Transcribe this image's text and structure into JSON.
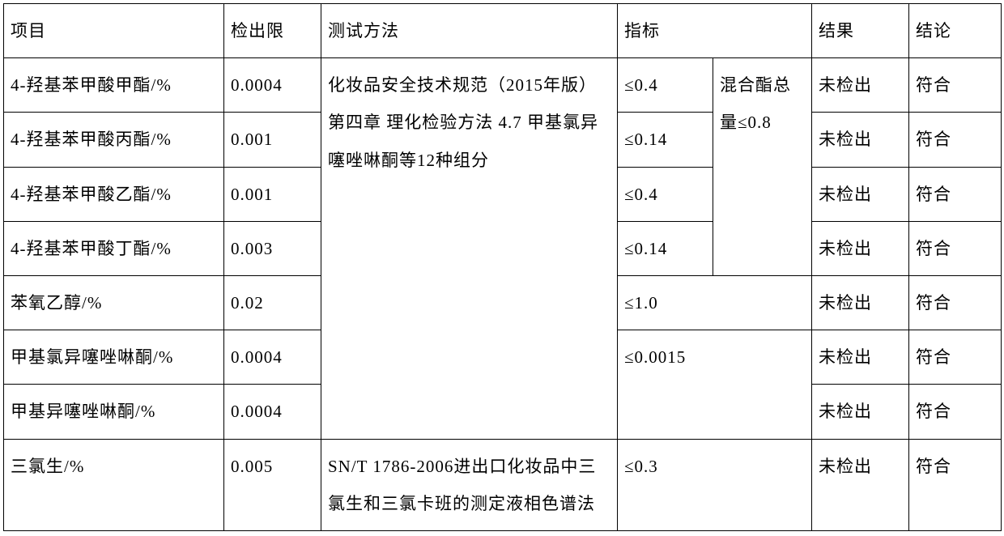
{
  "header": {
    "project": "项目",
    "limit": "检出限",
    "method": "测试方法",
    "spec": "指标",
    "result": "结果",
    "conclusion": "结论"
  },
  "method1": "化妆品安全技术规范（2015年版） 第四章 理化检验方法 4.7 甲基氯异噻唑啉酮等12种组分",
  "method2": "SN/T 1786-2006进出口化妆品中三氯生和三氯卡班的测定液相色谱法",
  "merged_spec_note": "混合酯总　量≤0.8",
  "rows": [
    {
      "project": "4-羟基苯甲酸甲酯/%",
      "limit": "0.0004",
      "spec": "≤0.4",
      "result": "未检出",
      "conclusion": "符合"
    },
    {
      "project": "4-羟基苯甲酸丙酯/%",
      "limit": "0.001",
      "spec": "≤0.14",
      "result": "未检出",
      "conclusion": "符合"
    },
    {
      "project": "4-羟基苯甲酸乙酯/%",
      "limit": "0.001",
      "spec": "≤0.4",
      "result": "未检出",
      "conclusion": "符合"
    },
    {
      "project": "4-羟基苯甲酸丁酯/%",
      "limit": "0.003",
      "spec": "≤0.14",
      "result": "未检出",
      "conclusion": "符合"
    },
    {
      "project": "苯氧乙醇/%",
      "limit": "0.02",
      "spec": "≤1.0",
      "result": "未检出",
      "conclusion": "符合"
    },
    {
      "project": "甲基氯异噻唑啉酮/%",
      "limit": "0.0004",
      "spec": "≤0.0015",
      "result": "未检出",
      "conclusion": "符合"
    },
    {
      "project": "甲基异噻唑啉酮/%",
      "limit": "0.0004",
      "spec": "",
      "result": "未检出",
      "conclusion": "符合"
    },
    {
      "project": "三氯生/%",
      "limit": "0.005",
      "spec": "≤0.3",
      "result": "未检出",
      "conclusion": "符合"
    }
  ]
}
